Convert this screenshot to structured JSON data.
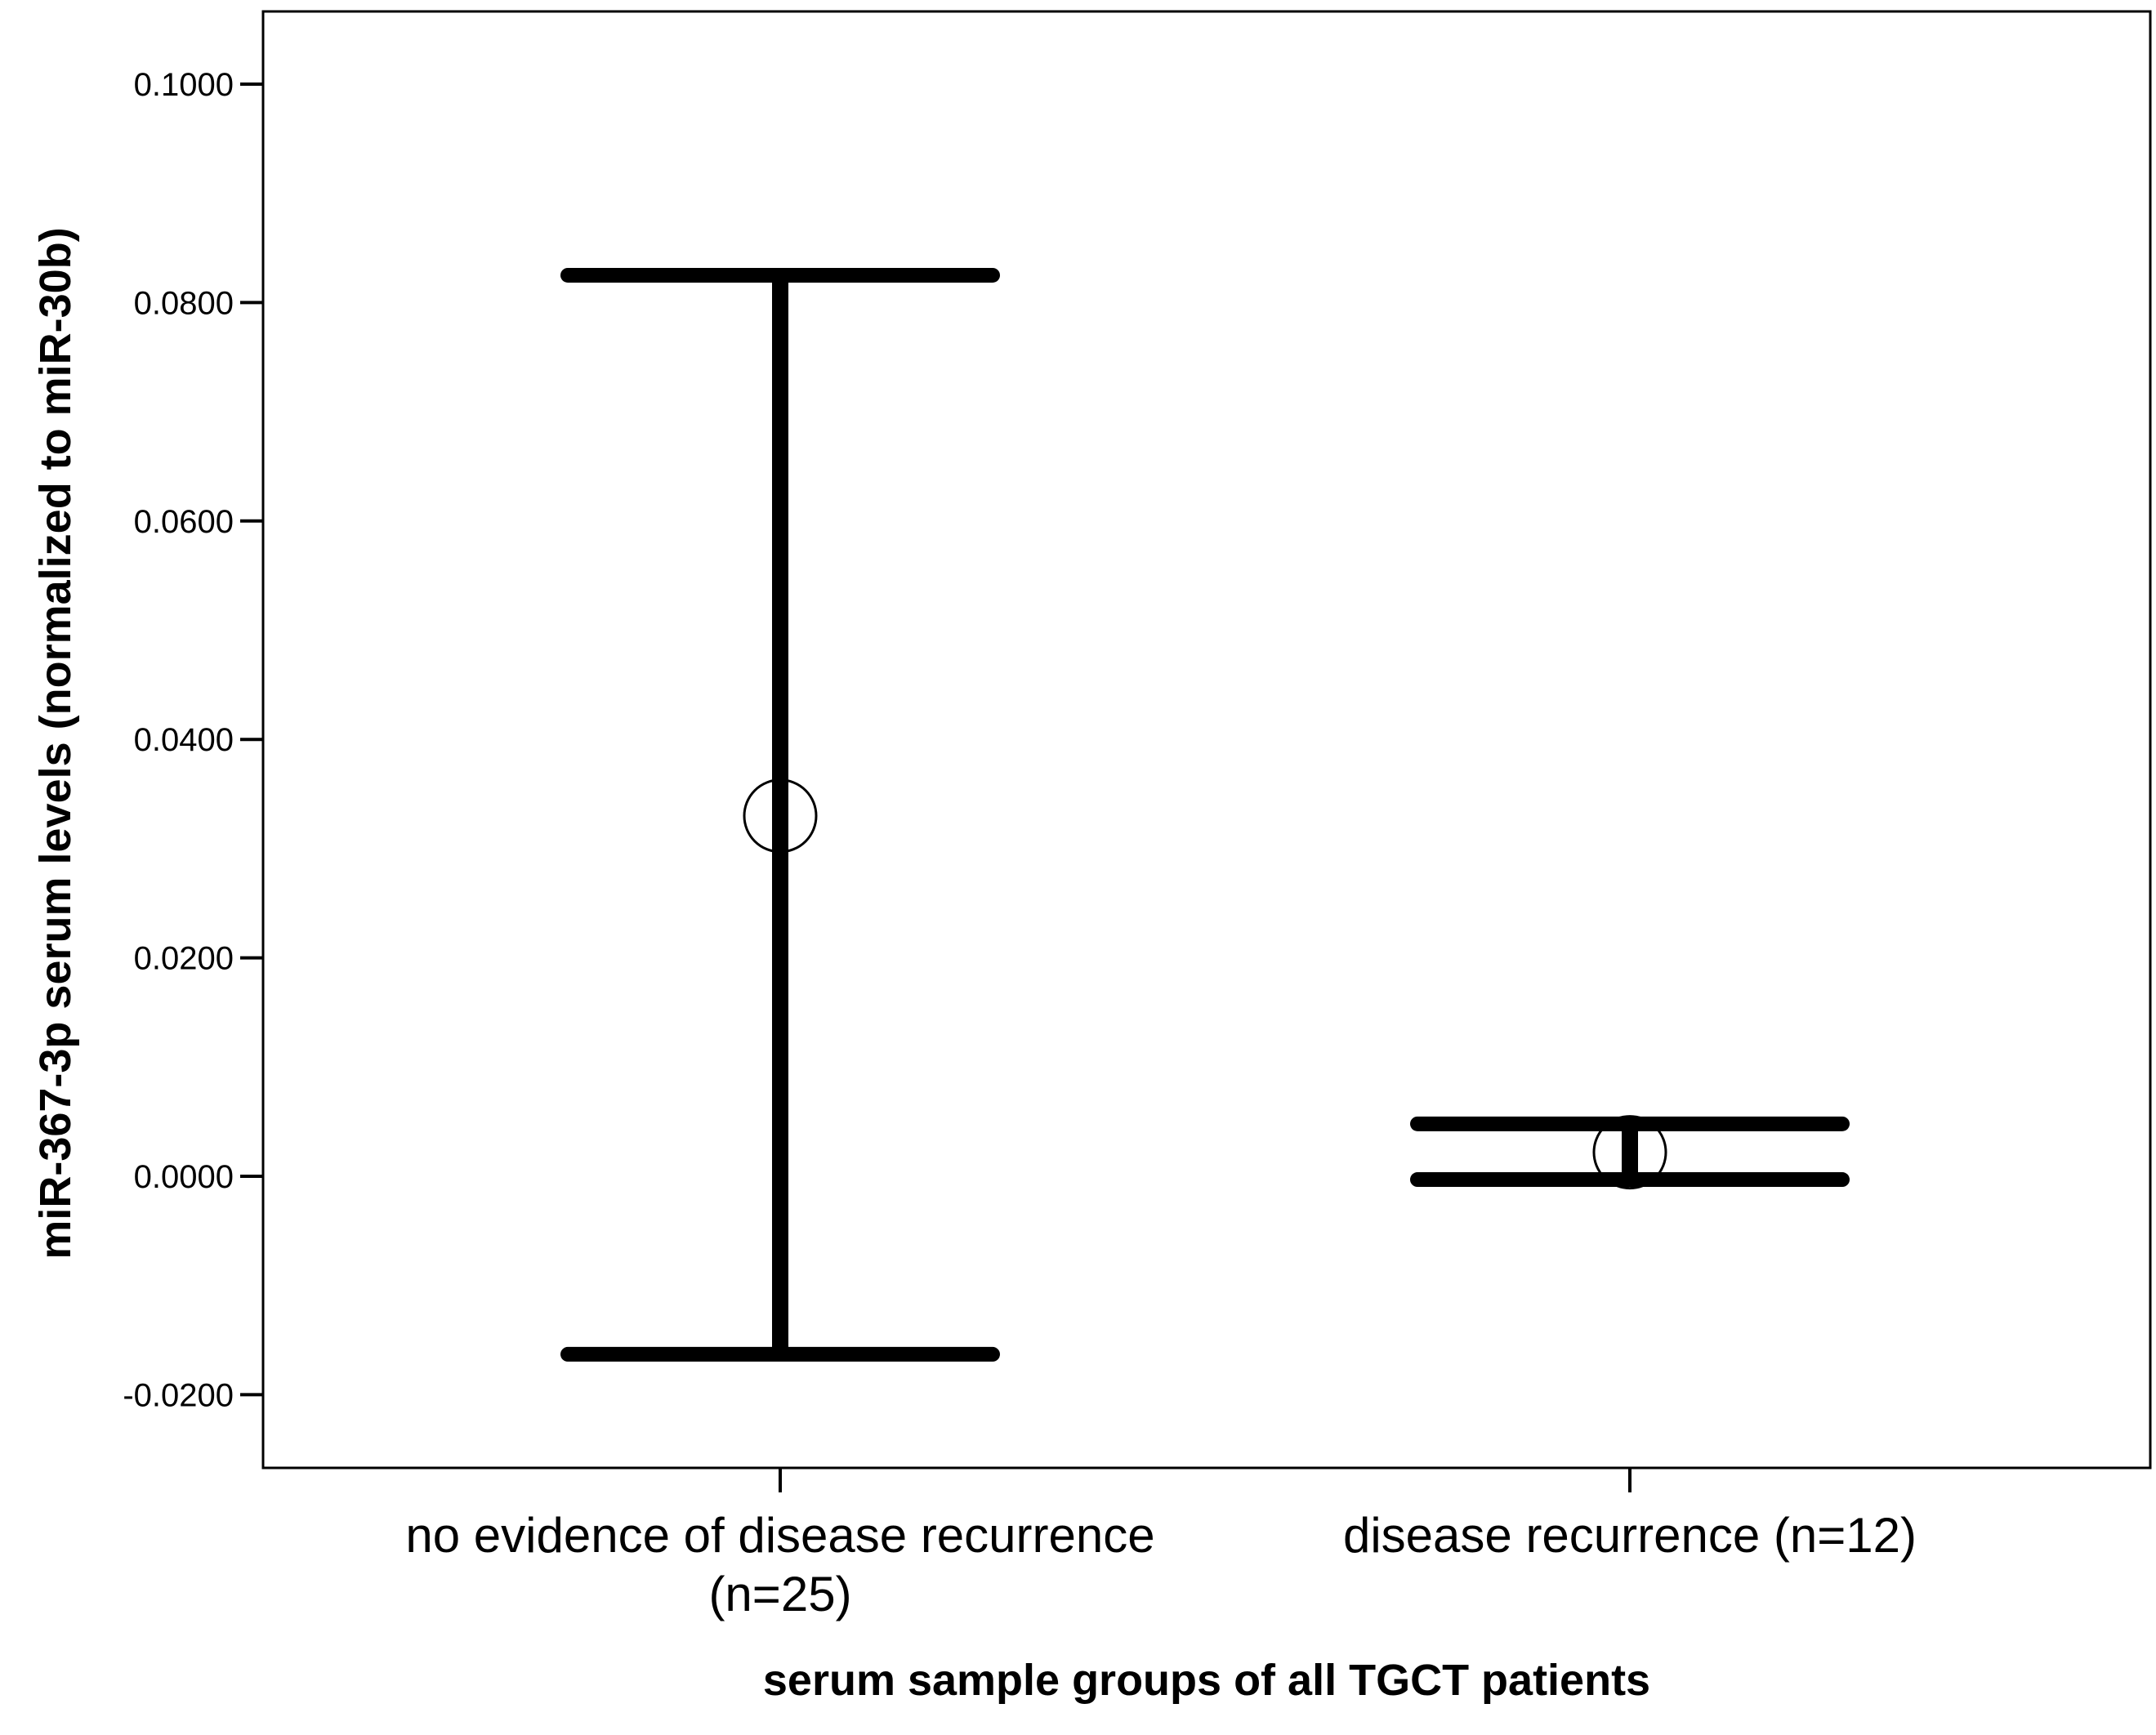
{
  "chart_data": {
    "type": "error_bar",
    "xlabel": "serum sample groups of all TGCT patients",
    "ylabel": "miR-367-3p serum levels (normalized to miR-30b)",
    "ylim": [
      -0.027,
      0.106
    ],
    "yticks": [
      "0.1000",
      "0.0800",
      "0.0600",
      "0.0400",
      "0.0200",
      "0.0000",
      "-0.0200"
    ],
    "ytick_values": [
      0.1,
      0.08,
      0.06,
      0.04,
      0.02,
      0.0,
      -0.02
    ],
    "grid": false,
    "categories": [
      {
        "label_lines": [
          "no evidence of disease recurrence",
          "(n=25)"
        ]
      },
      {
        "label_lines": [
          "disease recurrence (n=12)"
        ]
      }
    ],
    "points": [
      {
        "mean": 0.033,
        "lower": -0.0163,
        "upper": 0.0825
      },
      {
        "mean": 0.0022,
        "lower": -0.0003,
        "upper": 0.0048
      }
    ],
    "colors": {
      "marks": "#000000",
      "frame": "#000000",
      "background": "#ffffff"
    }
  }
}
